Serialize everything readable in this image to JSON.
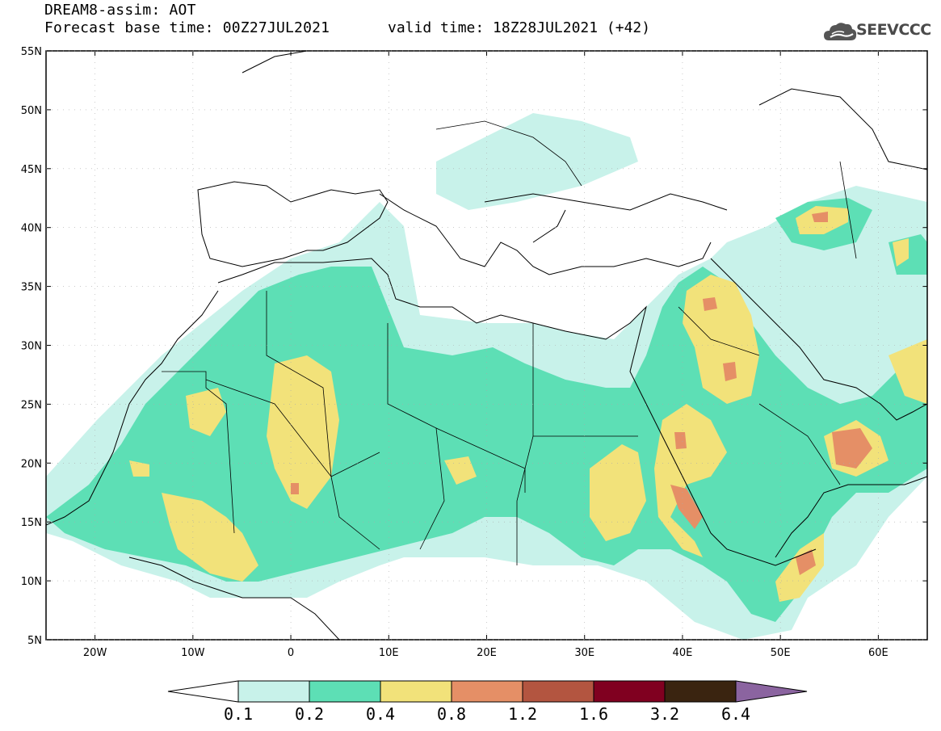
{
  "header": {
    "title": "DREAM8-assim: AOT",
    "base_time": "Forecast base time: 00Z27JUL2021",
    "valid_time": "valid time: 18Z28JUL2021 (+42)",
    "logo_text": "SEEVCCC",
    "logo_icon": "cloud-icon"
  },
  "map": {
    "lat_labels": [
      "55N",
      "50N",
      "45N",
      "40N",
      "35N",
      "30N",
      "25N",
      "20N",
      "15N",
      "10N",
      "5N"
    ],
    "lon_labels": [
      "20W",
      "10W",
      "0",
      "10E",
      "20E",
      "30E",
      "40E",
      "50E",
      "60E"
    ],
    "lon_range": [
      -25,
      65
    ],
    "lat_range": [
      5,
      55
    ]
  },
  "colorbar": {
    "labels": [
      "0.1",
      "0.2",
      "0.4",
      "0.8",
      "1.2",
      "1.6",
      "3.2",
      "6.4"
    ],
    "colors": [
      "#c8f2ea",
      "#5ddfb5",
      "#f2e27a",
      "#e58f66",
      "#b35540",
      "#800020",
      "#3a2410",
      "#8b64a0"
    ]
  }
}
